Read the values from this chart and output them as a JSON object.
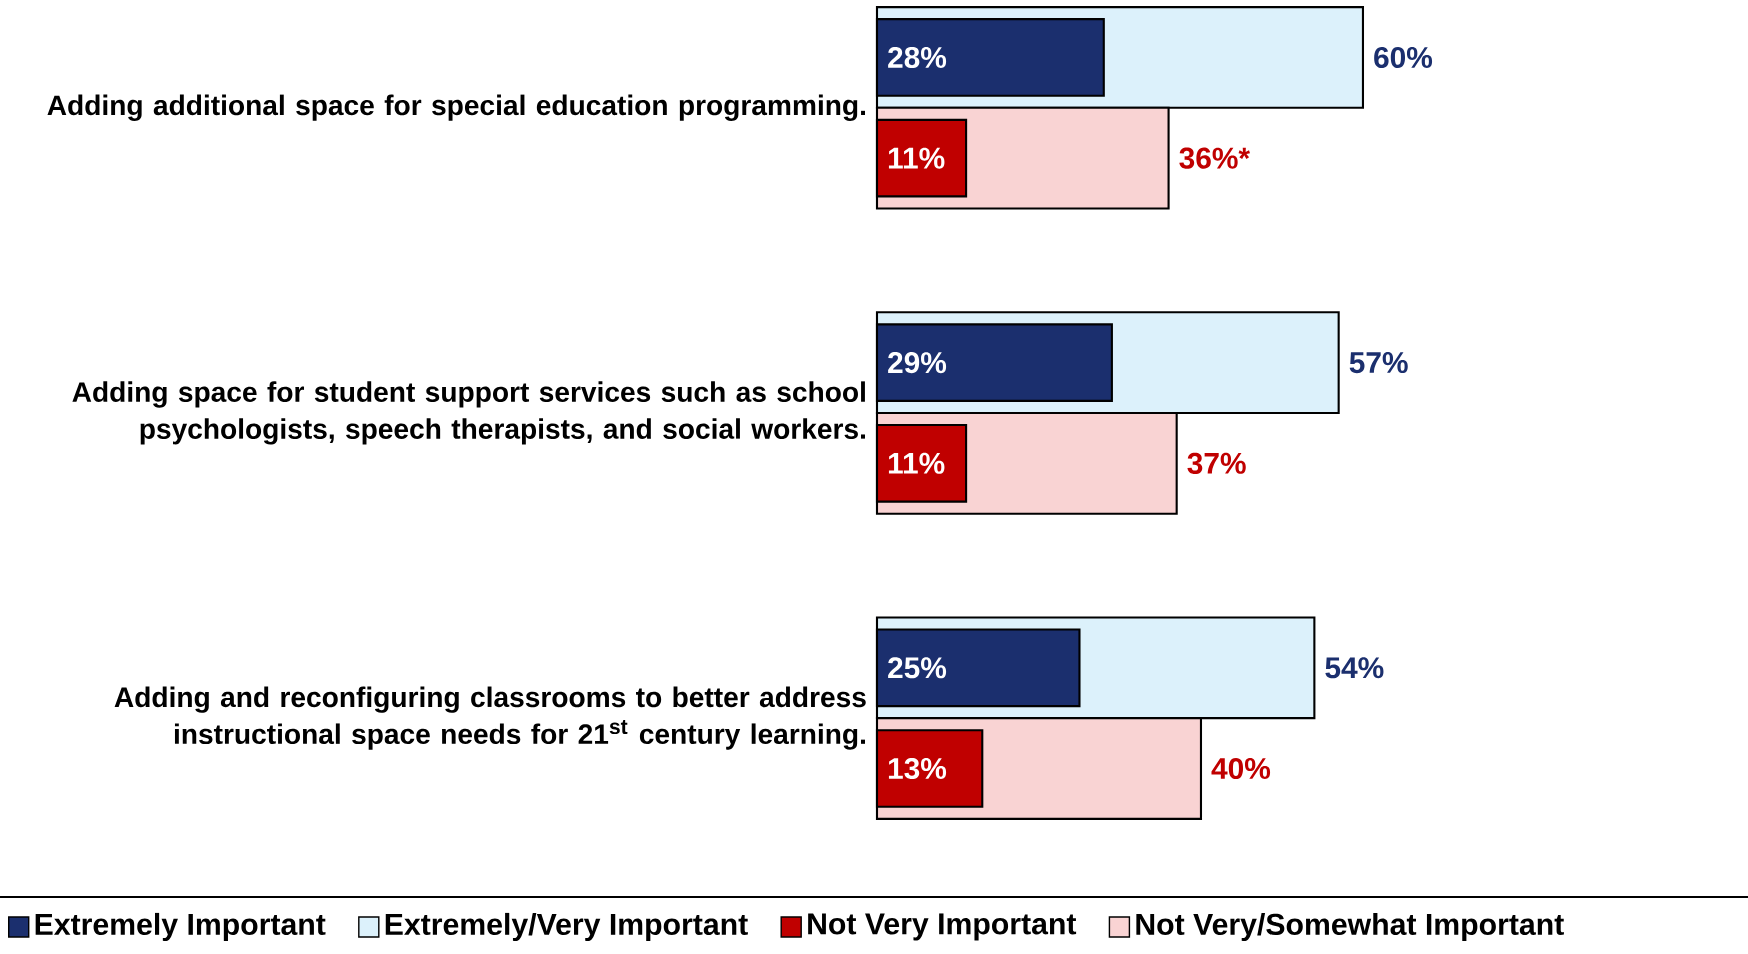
{
  "chart_data": {
    "type": "bar",
    "orientation": "horizontal",
    "categories": [
      "Adding additional space for special education programming.",
      "Adding space for student support services such as school psychologists, speech therapists, and social workers.",
      "Adding and reconfiguring classrooms to better address instructional space needs for 21$^{st}$ century learning."
    ],
    "tick_labels": "y",
    "legend": "bottom",
    "series": [
      {
        "name": "Extremely Important",
        "color": "#1b2f6e",
        "values": [
          28,
          29,
          25
        ],
        "value_labels": [
          "28%",
          "29%",
          "25%"
        ]
      },
      {
        "name": "Extremely/Very Important",
        "color": "#dcf1fb",
        "values": [
          60,
          57,
          54
        ],
        "value_labels": [
          "60%",
          "57%",
          "54%"
        ]
      },
      {
        "name": "Not Very Important",
        "color": "#c00000",
        "values": [
          11,
          11,
          13
        ],
        "value_labels": [
          "11%",
          "11%",
          "13%"
        ]
      },
      {
        "name": "Not Very/Somewhat Important",
        "color": "#f9d3d3",
        "values": [
          36,
          37,
          40
        ],
        "value_labels": [
          "36%*",
          "37%",
          "40%"
        ]
      }
    ]
  }
}
